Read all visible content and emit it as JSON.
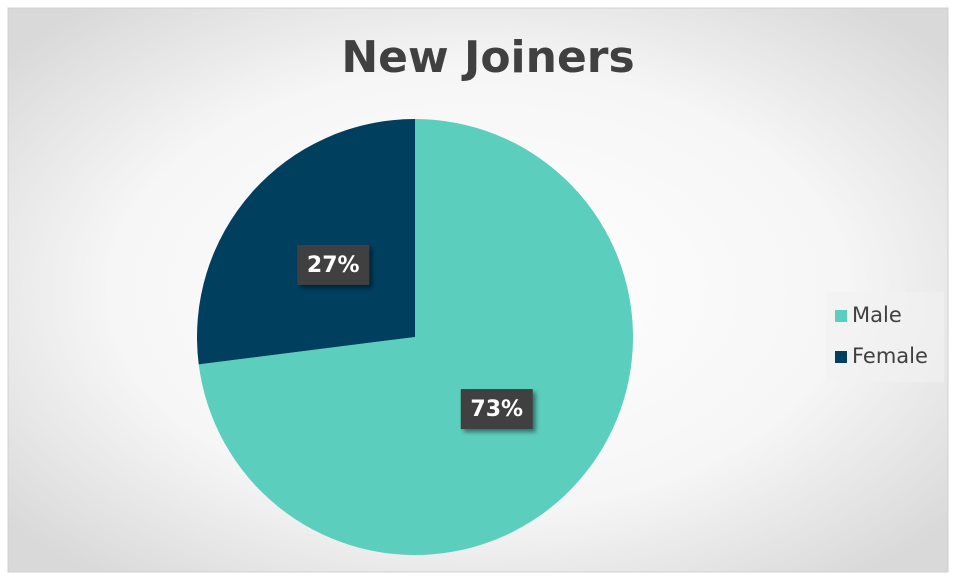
{
  "chart_data": {
    "type": "pie",
    "title": "New Joiners",
    "categories": [
      "Male",
      "Female"
    ],
    "values": [
      73,
      27
    ],
    "value_labels": [
      "73%",
      "27%"
    ],
    "colors": [
      "#5ccebd",
      "#003f5e"
    ],
    "legend": "right"
  }
}
